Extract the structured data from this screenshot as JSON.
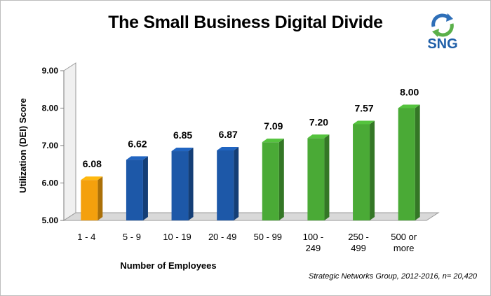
{
  "chart_data": {
    "type": "bar",
    "title": "The Small Business Digital Divide",
    "xlabel": "Number of Employees",
    "ylabel": "Utilization (DEI) Score",
    "ylim": [
      5.0,
      9.0
    ],
    "yticks": [
      "5.00",
      "6.00",
      "7.00",
      "8.00",
      "9.00"
    ],
    "categories": [
      [
        "1 - 4"
      ],
      [
        "5 - 9"
      ],
      [
        "10 - 19"
      ],
      [
        "20 - 49"
      ],
      [
        "50 - 99"
      ],
      [
        "100 -",
        "249"
      ],
      [
        "250 -",
        "499"
      ],
      [
        "500 or",
        "more"
      ]
    ],
    "values": [
      6.08,
      6.62,
      6.85,
      6.87,
      7.09,
      7.2,
      7.57,
      8.0
    ],
    "value_labels": [
      "6.08",
      "6.62",
      "6.85",
      "6.87",
      "7.09",
      "7.20",
      "7.57",
      "8.00"
    ],
    "bar_colors": [
      "#f4a00d",
      "#1d58a8",
      "#1d58a8",
      "#1d58a8",
      "#4aaa36",
      "#4aaa36",
      "#4aaa36",
      "#4aaa36"
    ],
    "grid": false,
    "legend": "none"
  },
  "logo": {
    "text": "SNG"
  },
  "source": "Strategic Networks Group, 2012-2016, n= 20,420"
}
